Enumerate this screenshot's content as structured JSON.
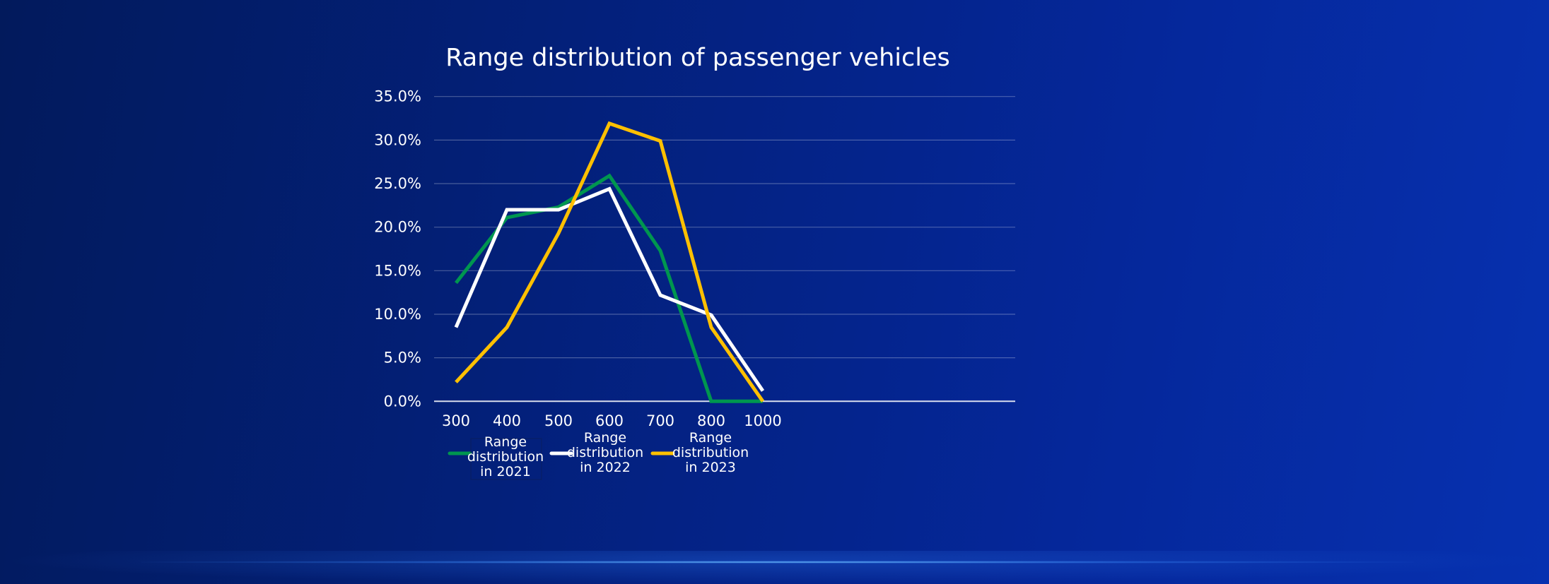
{
  "chart_data": {
    "type": "line",
    "title": "Range distribution of passenger vehicles",
    "categories": [
      "300",
      "400",
      "500",
      "600",
      "700",
      "800",
      "1000"
    ],
    "ylim": [
      0,
      35
    ],
    "yticks": [
      "0.0%",
      "5.0%",
      "10.0%",
      "15.0%",
      "20.0%",
      "25.0%",
      "30.0%",
      "35.0%"
    ],
    "grid": true,
    "legend_position": "bottom",
    "series": [
      {
        "name": "Range distribution in 2021",
        "color": "#00964f",
        "values": [
          13.6,
          21.1,
          22.3,
          25.9,
          17.3,
          0.0,
          0.0
        ]
      },
      {
        "name": "Range distribution in 2022",
        "color": "#ffffff",
        "values": [
          8.5,
          22.0,
          22.0,
          24.4,
          12.2,
          9.9,
          1.2
        ]
      },
      {
        "name": "Range distribution in 2023",
        "color": "#ffc000",
        "values": [
          2.2,
          8.5,
          19.3,
          31.9,
          29.9,
          8.5,
          0.0
        ]
      }
    ]
  }
}
